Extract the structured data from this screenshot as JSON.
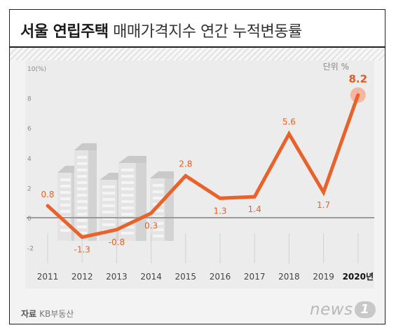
{
  "header": {
    "title_bold": "서울 연립주택",
    "title_light": "매매가격지수 연간 누적변동률"
  },
  "chart_data": {
    "type": "line",
    "x": [
      "2011",
      "2012",
      "2013",
      "2014",
      "2015",
      "2016",
      "2017",
      "2018",
      "2019",
      "2020"
    ],
    "x_tick_labels": [
      "2011",
      "2012",
      "2013",
      "2014",
      "2015",
      "2016",
      "2017",
      "2018",
      "2019",
      "2020년"
    ],
    "series": [
      {
        "values": [
          0.8,
          -1.3,
          -0.8,
          0.3,
          2.8,
          1.3,
          1.4,
          5.6,
          1.7,
          8.2
        ]
      }
    ],
    "data_labels": [
      "0.8",
      "-1.3",
      "-0.8",
      "0.3",
      "2.8",
      "1.3",
      "1.4",
      "5.6",
      "1.7",
      "8.2"
    ],
    "y_ticks": [
      -2,
      0,
      2,
      4,
      6,
      8,
      10
    ],
    "y_tick_labels": [
      "-2",
      "0",
      "2",
      "4",
      "6",
      "8",
      "10(%)"
    ],
    "ylim": [
      -2,
      10
    ],
    "unit_label": "단위 %",
    "grid": false,
    "line_color": "#e8622a",
    "highlight_color": "#f5b7a1",
    "label_color": "#e8622a",
    "last_label_color": "#e35a1f"
  },
  "footer": {
    "source_label": "자료",
    "source_value": "KB부동산",
    "logo_text": "news",
    "logo_badge": "1"
  }
}
